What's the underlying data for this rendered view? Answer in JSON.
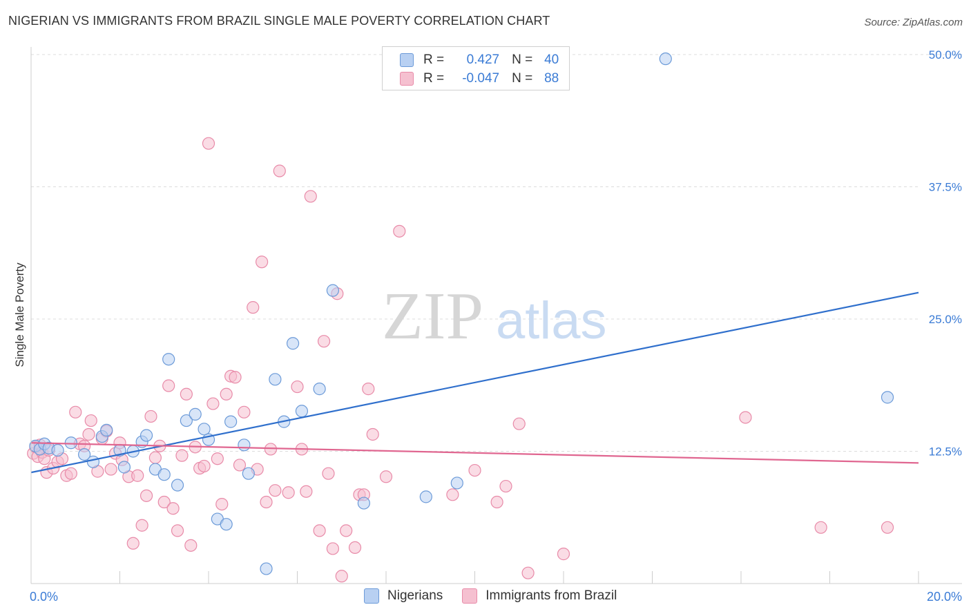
{
  "header": {
    "title": "NIGERIAN VS IMMIGRANTS FROM BRAZIL SINGLE MALE POVERTY CORRELATION CHART",
    "source": "Source: ZipAtlas.com"
  },
  "watermark": {
    "zip": "ZIP",
    "atlas": "atlas"
  },
  "legend_top": {
    "rows": [
      {
        "r_label": "R =",
        "r_value": "0.427",
        "n_label": "N =",
        "n_value": "40"
      },
      {
        "r_label": "R =",
        "r_value": "-0.047",
        "n_label": "N =",
        "n_value": "88"
      }
    ]
  },
  "legend_bottom": {
    "series1": "Nigerians",
    "series2": "Immigrants from Brazil"
  },
  "colors": {
    "nigerians_fill": "#b8d0f2",
    "nigerians_stroke": "#6b9ad8",
    "nigerians_line": "#2f6fcc",
    "brazil_fill": "#f5c0d0",
    "brazil_stroke": "#e88aa8",
    "brazil_line": "#e06690",
    "tick": "#3a7bd5",
    "grid": "#dcdcdc"
  },
  "chart_data": {
    "type": "scatter",
    "title": "NIGERIAN VS IMMIGRANTS FROM BRAZIL SINGLE MALE POVERTY CORRELATION CHART",
    "xlabel": "",
    "ylabel": "Single Male Poverty",
    "xlim": [
      0,
      20
    ],
    "ylim": [
      0,
      50
    ],
    "x_tick_labels": [
      "0.0%",
      "20.0%"
    ],
    "y_ticks": [
      12.5,
      25.0,
      37.5,
      50.0
    ],
    "y_tick_labels": [
      "12.5%",
      "25.0%",
      "37.5%",
      "50.0%"
    ],
    "grid": true,
    "series": [
      {
        "name": "Nigerians",
        "r": 0.427,
        "n": 40,
        "trend": [
          [
            0,
            10.5
          ],
          [
            20,
            27.5
          ]
        ],
        "points": [
          [
            0.1,
            13.0
          ],
          [
            0.2,
            12.7
          ],
          [
            0.3,
            13.2
          ],
          [
            0.4,
            12.8
          ],
          [
            0.6,
            12.6
          ],
          [
            0.9,
            13.3
          ],
          [
            1.2,
            12.2
          ],
          [
            1.4,
            11.5
          ],
          [
            1.6,
            13.9
          ],
          [
            1.7,
            14.5
          ],
          [
            2.0,
            12.6
          ],
          [
            2.1,
            11.0
          ],
          [
            2.3,
            12.5
          ],
          [
            2.5,
            13.4
          ],
          [
            2.6,
            14.0
          ],
          [
            2.8,
            10.8
          ],
          [
            3.0,
            10.3
          ],
          [
            3.1,
            21.2
          ],
          [
            3.3,
            9.3
          ],
          [
            3.5,
            15.4
          ],
          [
            3.7,
            16.0
          ],
          [
            3.9,
            14.6
          ],
          [
            4.0,
            13.6
          ],
          [
            4.2,
            6.1
          ],
          [
            4.4,
            5.6
          ],
          [
            4.5,
            15.3
          ],
          [
            4.8,
            13.1
          ],
          [
            4.9,
            10.4
          ],
          [
            5.3,
            1.4
          ],
          [
            5.5,
            19.3
          ],
          [
            5.7,
            15.3
          ],
          [
            5.9,
            22.7
          ],
          [
            6.1,
            16.3
          ],
          [
            6.5,
            18.4
          ],
          [
            6.8,
            27.7
          ],
          [
            7.5,
            7.6
          ],
          [
            8.9,
            8.2
          ],
          [
            9.6,
            9.5
          ],
          [
            14.3,
            49.6
          ],
          [
            19.3,
            17.6
          ]
        ]
      },
      {
        "name": "Immigrants from Brazil",
        "r": -0.047,
        "n": 88,
        "trend": [
          [
            0,
            13.3
          ],
          [
            20,
            11.4
          ]
        ],
        "points": [
          [
            0.05,
            12.3
          ],
          [
            0.1,
            12.9
          ],
          [
            0.15,
            12.0
          ],
          [
            0.2,
            13.1
          ],
          [
            0.25,
            12.4
          ],
          [
            0.3,
            11.8
          ],
          [
            0.35,
            10.5
          ],
          [
            0.4,
            12.6
          ],
          [
            0.5,
            10.9
          ],
          [
            0.6,
            11.5
          ],
          [
            0.7,
            11.8
          ],
          [
            0.8,
            10.2
          ],
          [
            0.9,
            10.4
          ],
          [
            1.0,
            16.2
          ],
          [
            1.1,
            13.2
          ],
          [
            1.2,
            13.0
          ],
          [
            1.3,
            14.1
          ],
          [
            1.35,
            15.4
          ],
          [
            1.5,
            10.6
          ],
          [
            1.6,
            13.7
          ],
          [
            1.7,
            14.4
          ],
          [
            1.8,
            10.8
          ],
          [
            1.9,
            12.3
          ],
          [
            2.0,
            13.3
          ],
          [
            2.05,
            11.7
          ],
          [
            2.2,
            10.1
          ],
          [
            2.3,
            3.8
          ],
          [
            2.4,
            10.2
          ],
          [
            2.5,
            5.5
          ],
          [
            2.6,
            8.3
          ],
          [
            2.7,
            15.8
          ],
          [
            2.8,
            11.9
          ],
          [
            2.9,
            13.0
          ],
          [
            3.0,
            7.7
          ],
          [
            3.1,
            18.7
          ],
          [
            3.2,
            7.1
          ],
          [
            3.3,
            5.0
          ],
          [
            3.4,
            12.1
          ],
          [
            3.5,
            17.9
          ],
          [
            3.6,
            3.6
          ],
          [
            3.7,
            12.9
          ],
          [
            3.8,
            10.9
          ],
          [
            3.9,
            11.1
          ],
          [
            4.0,
            41.6
          ],
          [
            4.1,
            17.0
          ],
          [
            4.2,
            11.8
          ],
          [
            4.3,
            7.5
          ],
          [
            4.4,
            17.9
          ],
          [
            4.5,
            19.6
          ],
          [
            4.6,
            19.5
          ],
          [
            4.7,
            11.2
          ],
          [
            4.8,
            16.2
          ],
          [
            5.0,
            26.1
          ],
          [
            5.1,
            10.8
          ],
          [
            5.2,
            30.4
          ],
          [
            5.3,
            7.7
          ],
          [
            5.4,
            12.7
          ],
          [
            5.5,
            8.8
          ],
          [
            5.6,
            39.0
          ],
          [
            5.8,
            8.6
          ],
          [
            6.0,
            18.6
          ],
          [
            6.1,
            12.7
          ],
          [
            6.2,
            8.7
          ],
          [
            6.3,
            36.6
          ],
          [
            6.5,
            5.0
          ],
          [
            6.6,
            22.9
          ],
          [
            6.7,
            10.4
          ],
          [
            6.8,
            3.3
          ],
          [
            6.9,
            27.4
          ],
          [
            7.0,
            0.7
          ],
          [
            7.1,
            5.0
          ],
          [
            7.3,
            3.4
          ],
          [
            7.4,
            8.4
          ],
          [
            7.5,
            8.4
          ],
          [
            7.6,
            18.4
          ],
          [
            7.7,
            14.1
          ],
          [
            8.0,
            10.1
          ],
          [
            8.3,
            33.3
          ],
          [
            9.5,
            8.4
          ],
          [
            10.0,
            10.7
          ],
          [
            10.5,
            7.7
          ],
          [
            10.7,
            9.2
          ],
          [
            11.0,
            15.1
          ],
          [
            11.2,
            1.0
          ],
          [
            12.0,
            2.8
          ],
          [
            16.1,
            15.7
          ],
          [
            17.8,
            5.3
          ],
          [
            19.3,
            5.3
          ]
        ]
      }
    ]
  }
}
